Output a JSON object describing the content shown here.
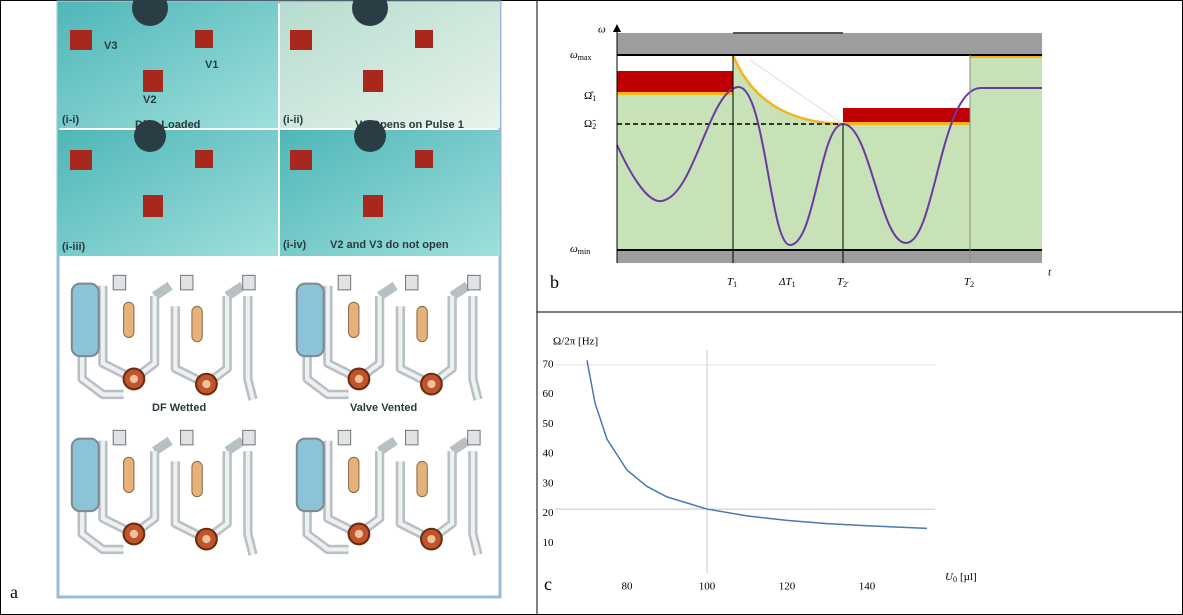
{
  "panel_a": {
    "label": "a",
    "photo_captions": [
      {
        "tag": "(i-i)",
        "text": "Disc Loaded"
      },
      {
        "tag": "(i-ii)",
        "text": "V1 Opens on Pulse 1"
      },
      {
        "tag": "(i-iii)",
        "text": ""
      },
      {
        "tag": "(i-iv)",
        "text": "V2 and V3 do not open"
      }
    ],
    "valve_labels": [
      "V3",
      "V1",
      "V2"
    ],
    "diagram_captions": [
      "DF Wetted",
      "Valve Vented"
    ]
  },
  "panel_b": {
    "label": "b",
    "y_axis": "ω",
    "x_axis": "t",
    "omega_max": {
      "base": "ω",
      "sub": "max"
    },
    "omega_hat_1": {
      "base": "Ω̂",
      "sub": "1"
    },
    "omega_tilde_2": {
      "base": "Ω̃",
      "sub": "2"
    },
    "omega_min": {
      "base": "ω",
      "sub": "min"
    },
    "times": [
      {
        "base": "T",
        "sub": "1"
      },
      {
        "base": "ΔT",
        "sub": "1"
      },
      {
        "base": "T",
        "sub": "2′"
      },
      {
        "base": "T",
        "sub": "2"
      }
    ]
  },
  "chart_data": {
    "type": "line",
    "panel_label": "c",
    "y_label": "Ω/2π [Hz]",
    "x_label": {
      "base": "U",
      "sub": "0",
      "unit": "[µl]"
    },
    "x": [
      70,
      72,
      75,
      80,
      85,
      90,
      100,
      110,
      120,
      130,
      140,
      155
    ],
    "series": [
      {
        "color": "#4a78b0",
        "values": [
          71.5,
          57.2,
          45.0,
          34.6,
          29.1,
          25.6,
          21.5,
          19.2,
          17.7,
          16.6,
          15.9,
          15.0
        ]
      }
    ],
    "xlim": [
      62,
      157
    ],
    "ylim": [
      0,
      75
    ],
    "xticks": [
      80,
      100,
      120,
      140
    ],
    "yticks": [
      10,
      20,
      30,
      40,
      50,
      60,
      70
    ],
    "reference_point": {
      "x": 100,
      "y": 21.5
    }
  }
}
